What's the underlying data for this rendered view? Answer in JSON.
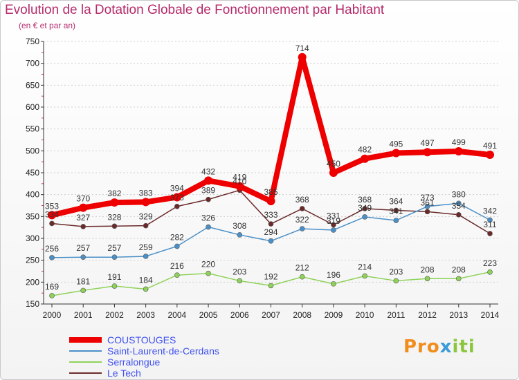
{
  "title": "Evolution de la Dotation Globale de Fonctionnement par Habitant",
  "subtitle": "(en € et par an)",
  "logo": {
    "p1": "Pro",
    "p2": "x",
    "p3": "iti"
  },
  "colors": {
    "title": "#b52b6b",
    "legend_text": "#3f51f0"
  },
  "chart_data": {
    "type": "line",
    "title": "Evolution de la Dotation Globale de Fonctionnement par Habitant",
    "subtitle": "(en € et par an)",
    "xlabel": "",
    "ylabel": "",
    "x": [
      "2000",
      "2001",
      "2002",
      "2003",
      "2004",
      "2005",
      "2006",
      "2007",
      "2008",
      "2009",
      "2010",
      "2011",
      "2012",
      "2013",
      "2014"
    ],
    "yticks": [
      150,
      200,
      250,
      300,
      350,
      400,
      450,
      500,
      550,
      600,
      650,
      700,
      750
    ],
    "ylim": [
      150,
      750
    ],
    "grid": "horizontal",
    "legend_position": "bottom-left",
    "series": [
      {
        "name": "COUSTOUGES",
        "color": "#ee0000",
        "values": [
          353,
          370,
          382,
          383,
          394,
          432,
          419,
          385,
          714,
          450,
          482,
          495,
          497,
          499,
          491
        ]
      },
      {
        "name": "Saint-Laurent-de-Cerdans",
        "color": "#4a90c8",
        "values": [
          256,
          257,
          257,
          259,
          282,
          326,
          308,
          294,
          322,
          319,
          349,
          341,
          373,
          380,
          342
        ]
      },
      {
        "name": "Serralongue",
        "color": "#8fd25a",
        "values": [
          169,
          181,
          191,
          184,
          216,
          220,
          203,
          192,
          212,
          196,
          214,
          203,
          208,
          208,
          223
        ]
      },
      {
        "name": "Le Tech",
        "color": "#6b2a2a",
        "values": [
          334,
          327,
          328,
          329,
          373,
          389,
          410,
          333,
          368,
          331,
          368,
          364,
          361,
          354,
          311
        ]
      }
    ]
  }
}
